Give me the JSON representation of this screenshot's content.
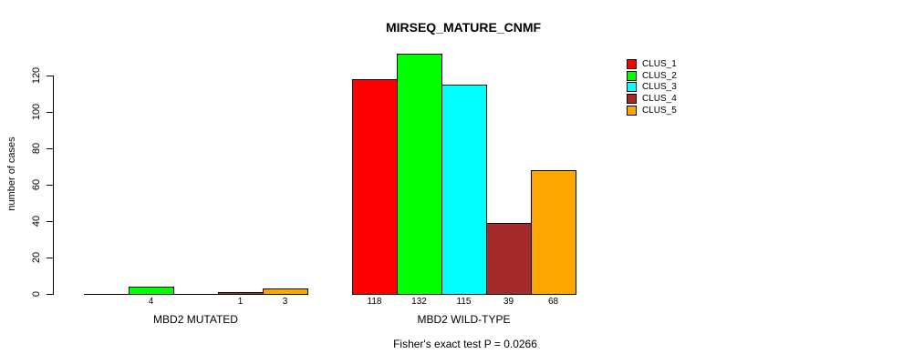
{
  "chart_data": {
    "type": "bar",
    "title": "MIRSEQ_MATURE_CNMF",
    "ylabel": "number of cases",
    "xlabel": "",
    "groups": [
      "MBD2 MUTATED",
      "MBD2 WILD-TYPE"
    ],
    "series": [
      {
        "name": "CLUS_1",
        "color": "#FF0000",
        "values": [
          0,
          118
        ]
      },
      {
        "name": "CLUS_2",
        "color": "#00FF00",
        "values": [
          4,
          132
        ]
      },
      {
        "name": "CLUS_3",
        "color": "#00FFFF",
        "values": [
          0,
          115
        ]
      },
      {
        "name": "CLUS_4",
        "color": "#A52A2A",
        "values": [
          1,
          39
        ]
      },
      {
        "name": "CLUS_5",
        "color": "#FFA500",
        "values": [
          3,
          68
        ]
      }
    ],
    "yticks": [
      0,
      20,
      40,
      60,
      80,
      100,
      120
    ],
    "ylim": [
      0,
      132
    ],
    "grid": false,
    "legend_position": "top-right",
    "bar_value_labels": {
      "shown": true,
      "hidden_when_zero": true
    },
    "axis_color": "#000000",
    "background_color": "#ffffff"
  },
  "footer": {
    "text": "Fisher's exact test P = 0.0266"
  }
}
